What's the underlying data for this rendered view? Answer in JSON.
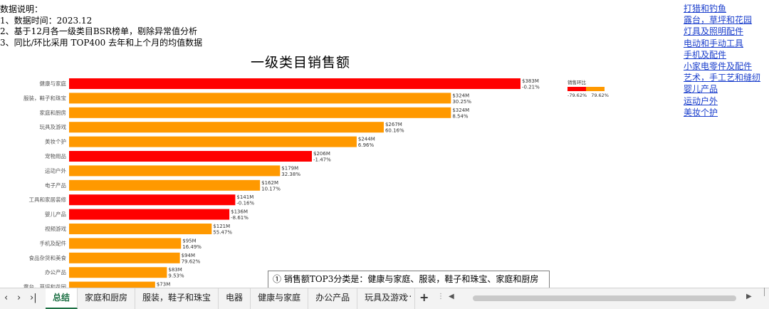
{
  "description": {
    "heading": "数据说明：",
    "lines": [
      "1、数据时间：2023.12",
      "2、基于12月各一级类目BSR榜单，剔除异常值分析",
      "3、同比/环比采用 TOP400 去年和上个月的均值数据"
    ]
  },
  "category_links": [
    "打猎和钓鱼",
    "露台，草坪和花园",
    "灯具及照明配件",
    "电动和手动工具",
    "手机及配件",
    "小家电零件及配件",
    "艺术，手工艺和缝纫",
    "婴儿产品",
    "运动户外",
    "美妆个护"
  ],
  "legend": {
    "title": "销售环比",
    "min_label": "-79.62%",
    "max_label": "79.62%",
    "negative_color": "#ff0000",
    "positive_color": "#ff9900"
  },
  "chart_data": {
    "type": "bar",
    "orientation": "horizontal",
    "title": "一级类目销售额",
    "categories": [
      "健康与家庭",
      "服装，鞋子和珠宝",
      "家庭和厨房",
      "玩具及游戏",
      "美妆个护",
      "宠物用品",
      "运动户外",
      "电子产品",
      "工具和家居装修",
      "婴儿产品",
      "视频游戏",
      "手机及配件",
      "食品杂货和美食",
      "办公产品",
      "露台，草坪和花园"
    ],
    "values": [
      383,
      324,
      324,
      267,
      244,
      206,
      179,
      162,
      141,
      136,
      121,
      95,
      94,
      83,
      73
    ],
    "value_labels": [
      "$383M",
      "$324M",
      "$324M",
      "$267M",
      "$244M",
      "$206M",
      "$179M",
      "$162M",
      "$141M",
      "$136M",
      "$121M",
      "$95M",
      "$94M",
      "$83M",
      "$73M"
    ],
    "mom_change": [
      -0.21,
      30.25,
      8.54,
      60.16,
      6.96,
      -1.47,
      32.38,
      10.17,
      -0.16,
      -8.61,
      55.47,
      16.49,
      79.62,
      9.53,
      null
    ],
    "mom_labels": [
      "-0.21%",
      "30.25%",
      "8.54%",
      "60.16%",
      "6.96%",
      "-1.47%",
      "32.38%",
      "10.17%",
      "-0.16%",
      "-8.61%",
      "55.47%",
      "16.49%",
      "79.62%",
      "9.53%",
      ""
    ],
    "unit": "$M",
    "xlim": [
      0,
      383
    ],
    "colors": {
      "negative": "#ff0000",
      "positive": "#ff9900"
    }
  },
  "note": "① 销售额TOP3分类是：健康与家庭、服装，鞋子和珠宝、家庭和厨房",
  "sheet_tabs": {
    "tabs": [
      "总结",
      "家庭和厨房",
      "服装，鞋子和珠宝",
      "电器",
      "健康与家庭",
      "办公产品",
      "玩具及游戏"
    ],
    "active_index": 0,
    "more_label": "···",
    "add_label": "+"
  },
  "nav": {
    "prev": "‹",
    "next": "›",
    "last": "›|"
  }
}
